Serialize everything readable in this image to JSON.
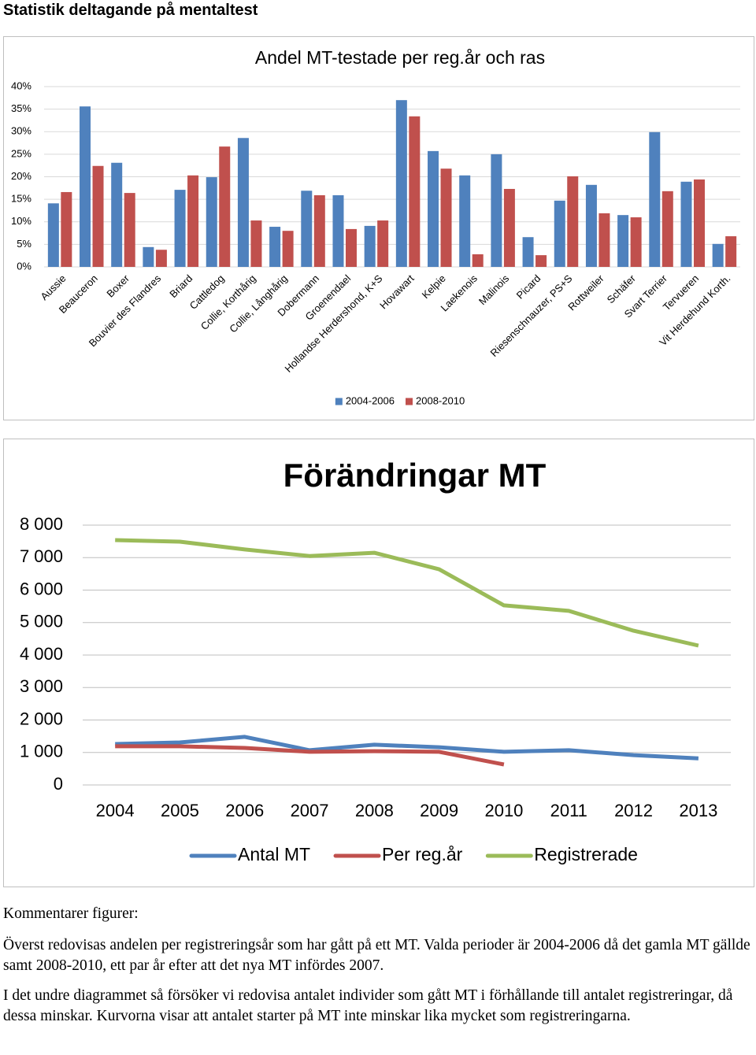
{
  "title": "Statistik deltagande på mentaltest",
  "chart_data": [
    {
      "type": "bar",
      "title": "Andel MT-testade per reg.år och ras",
      "categories": [
        "Aussie",
        "Beauceron",
        "Boxer",
        "Bouvier des Flandres",
        "Briard",
        "Cattledog",
        "Collie, Korthårig",
        "Collie, Långhårig",
        "Dobermann",
        "Groenendael",
        "Hollandse Herdershond, K+S",
        "Hovawart",
        "Kelpie",
        "Laekenois",
        "Malinois",
        "Picard",
        "Riesenschnauzer, PS+S",
        "Rottweiler",
        "Schäfer",
        "Svart Terrier",
        "Tervueren",
        "Vit Herdehund Korth."
      ],
      "series": [
        {
          "name": "2004-2006",
          "color": "#4f81bd",
          "values": [
            14.1,
            35.6,
            23.1,
            4.4,
            17.1,
            19.9,
            28.6,
            8.9,
            16.9,
            15.9,
            9.1,
            37.0,
            25.7,
            20.3,
            25.0,
            6.6,
            14.7,
            18.2,
            11.5,
            29.9,
            18.9,
            5.1
          ]
        },
        {
          "name": "2008-2010",
          "color": "#c0504d",
          "values": [
            16.6,
            22.4,
            16.4,
            3.8,
            20.3,
            26.7,
            10.3,
            8.0,
            15.9,
            8.4,
            10.3,
            33.4,
            21.8,
            2.8,
            17.3,
            2.6,
            20.1,
            11.9,
            11.0,
            16.8,
            19.4,
            6.8
          ]
        }
      ],
      "ylim": [
        0,
        40
      ],
      "yticks": [
        {
          "value": 0,
          "label": "0%"
        },
        {
          "value": 5,
          "label": "5%"
        },
        {
          "value": 10,
          "label": "10%"
        },
        {
          "value": 15,
          "label": "15%"
        },
        {
          "value": 20,
          "label": "20%"
        },
        {
          "value": 25,
          "label": "25%"
        },
        {
          "value": 30,
          "label": "30%"
        },
        {
          "value": 35,
          "label": "35%"
        },
        {
          "value": 40,
          "label": "40%"
        }
      ],
      "grid": true,
      "legend": "bottom"
    },
    {
      "type": "line",
      "title": "Förändringar MT",
      "categories": [
        "2004",
        "2005",
        "2006",
        "2007",
        "2008",
        "2009",
        "2010",
        "2011",
        "2012",
        "2013"
      ],
      "series": [
        {
          "name": "Antal MT",
          "color": "#4f81bd",
          "values": [
            1260,
            1310,
            1480,
            1070,
            1240,
            1160,
            1020,
            1070,
            920,
            820
          ]
        },
        {
          "name": "Per reg.år",
          "color": "#c0504d",
          "values": [
            1190,
            1190,
            1140,
            1020,
            1040,
            1020,
            630,
            null,
            null,
            null
          ]
        },
        {
          "name": "Registrerade",
          "color": "#9bbb59",
          "values": [
            7540,
            7490,
            7250,
            7050,
            7150,
            6640,
            5530,
            5360,
            4750,
            4290
          ]
        }
      ],
      "ylim": [
        0,
        8000
      ],
      "yticks": [
        0,
        {
          "value": 1000,
          "label": "1 000"
        },
        {
          "value": 2000,
          "label": "2 000"
        },
        {
          "value": 3000,
          "label": "3 000"
        },
        {
          "value": 4000,
          "label": "4 000"
        },
        {
          "value": 5000,
          "label": "5 000"
        },
        {
          "value": 6000,
          "label": "6 000"
        },
        {
          "value": 7000,
          "label": "7 000"
        },
        {
          "value": 8000,
          "label": "8 000"
        }
      ],
      "grid": true,
      "legend": "bottom"
    }
  ],
  "comments": {
    "heading": "Kommentarer figurer:",
    "paragraphs": [
      "Överst redovisas andelen per registreringsår som har gått på ett MT. Valda perioder är 2004-2006 då det gamla MT gällde samt 2008-2010, ett par år efter att det nya MT infördes 2007.",
      "I det undre diagrammet så försöker vi redovisa antalet individer som gått MT i förhållande till antalet registreringar, då dessa minskar. Kurvorna visar att antalet starter på MT inte minskar lika mycket som registreringarna."
    ]
  }
}
